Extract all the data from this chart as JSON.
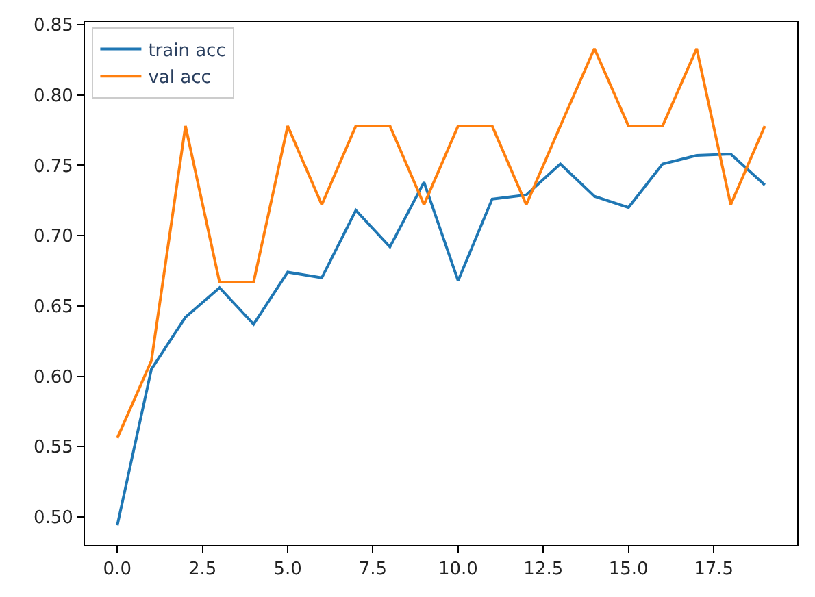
{
  "chart_data": {
    "type": "line",
    "x": [
      0,
      1,
      2,
      3,
      4,
      5,
      6,
      7,
      8,
      9,
      10,
      11,
      12,
      13,
      14,
      15,
      16,
      17,
      18,
      19
    ],
    "series": [
      {
        "name": "train acc",
        "color": "#1f77b4",
        "values": [
          0.494,
          0.605,
          0.642,
          0.663,
          0.637,
          0.674,
          0.67,
          0.718,
          0.692,
          0.738,
          0.668,
          0.726,
          0.729,
          0.751,
          0.728,
          0.72,
          0.751,
          0.757,
          0.758,
          0.736
        ]
      },
      {
        "name": "val acc",
        "color": "#ff7f0e",
        "values": [
          0.556,
          0.611,
          0.778,
          0.667,
          0.667,
          0.778,
          0.722,
          0.778,
          0.778,
          0.722,
          0.778,
          0.778,
          0.722,
          0.778,
          0.833,
          0.778,
          0.778,
          0.833,
          0.722,
          0.778
        ]
      }
    ],
    "xlim": [
      -0.95,
      19.95
    ],
    "xticks": [
      {
        "value": 0,
        "label": "0.0"
      },
      {
        "value": 2.5,
        "label": "2.5"
      },
      {
        "value": 5,
        "label": "5.0"
      },
      {
        "value": 7.5,
        "label": "7.5"
      },
      {
        "value": 10,
        "label": "10.0"
      },
      {
        "value": 12.5,
        "label": "12.5"
      },
      {
        "value": 15,
        "label": "15.0"
      },
      {
        "value": 17.5,
        "label": "17.5"
      }
    ],
    "ylim": [
      0.48,
      0.852
    ],
    "yticks": [
      {
        "value": 0.5,
        "label": "0.50"
      },
      {
        "value": 0.55,
        "label": "0.55"
      },
      {
        "value": 0.6,
        "label": "0.60"
      },
      {
        "value": 0.65,
        "label": "0.65"
      },
      {
        "value": 0.7,
        "label": "0.70"
      },
      {
        "value": 0.75,
        "label": "0.75"
      },
      {
        "value": 0.8,
        "label": "0.80"
      },
      {
        "value": 0.85,
        "label": "0.85"
      }
    ],
    "legend": "top left",
    "marker": "none",
    "line_style": "solid"
  }
}
